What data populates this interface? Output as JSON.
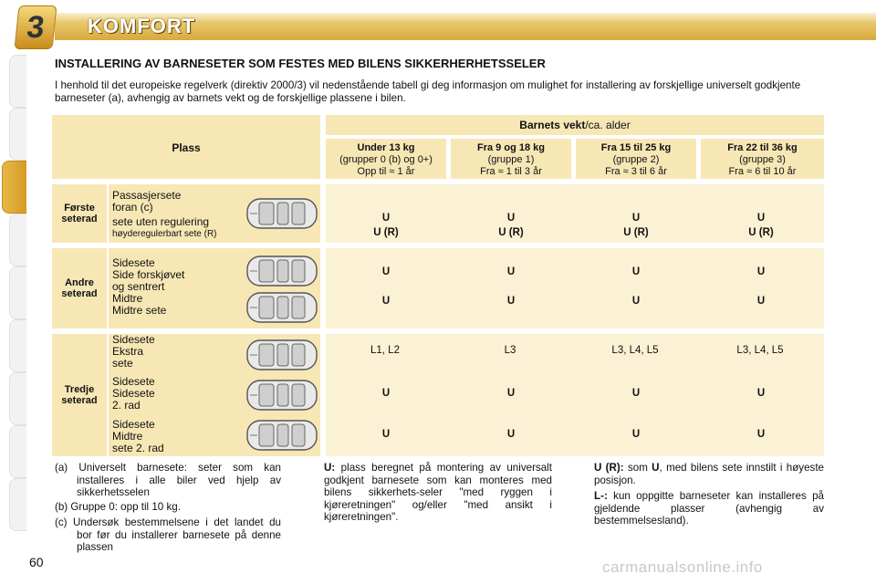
{
  "header": {
    "chapter_number": "3",
    "chapter_title": "KOMFORT"
  },
  "section_title": "INSTALLERING AV BARNESETER SOM FESTES MED BILENS SIKKERHERHETSSELER",
  "intro": "I henhold til det europeiske regelverk (direktiv 2000/3) vil nedenstående tabell gi deg informasjon om mulighet for installering av forskjellige universelt godkjente barneseter (a), avhengig av barnets vekt og de forskjellige plassene i bilen.",
  "table": {
    "plass_label": "Plass",
    "weight_header_bold": "Barnets vekt",
    "weight_header_rest": "/ca. alder",
    "groups": [
      {
        "title": "Under 13 kg",
        "sub": "(grupper 0 (b) og 0+)",
        "age": "Opp til ≈ 1 år"
      },
      {
        "title": "Fra 9 og 18 kg",
        "sub": "(gruppe 1)",
        "age": "Fra ≈ 1 til 3 år"
      },
      {
        "title": "Fra 15 til 25 kg",
        "sub": "(gruppe 2)",
        "age": "Fra ≈ 3 til 6 år"
      },
      {
        "title": "Fra 22 til 36 kg",
        "sub": "(gruppe 3)",
        "age": "Fra ≈ 6 til 10 år"
      }
    ],
    "rows": {
      "row1": {
        "label_line1": "Første",
        "label_line2": "seterad",
        "desc1": "Passasjersete",
        "desc2": "foran (c)",
        "desc3": "sete uten regulering",
        "desc4": "høyderegulerbart sete (R)",
        "values_top": [
          "U",
          "U",
          "U",
          "U"
        ],
        "values_bottom": [
          "U (R)",
          "U (R)",
          "U (R)",
          "U (R)"
        ]
      },
      "row2": {
        "label_line1": "Andre",
        "label_line2": "seterad",
        "desc1": "Sidesete",
        "desc2": "Side forskjøvet",
        "desc3": "og sentrert",
        "desc4": "Midtre",
        "desc5": "Midtre sete",
        "values_a": [
          "U",
          "U",
          "U",
          "U"
        ],
        "values_b": [
          "U",
          "U",
          "U",
          "U"
        ]
      },
      "row3": {
        "label_line1": "Tredje",
        "label_line2": "seterad",
        "sub1": [
          "Sidesete",
          "Ekstra",
          "sete"
        ],
        "sub2": [
          "Sidesete",
          "Sidesete",
          "2. rad"
        ],
        "sub3": [
          "Sidesete",
          "Midtre",
          "sete 2. rad"
        ],
        "values_a": [
          "L1, L2",
          "L3",
          "L3, L4, L5",
          "L3, L4, L5"
        ],
        "values_b": [
          "U",
          "U",
          "U",
          "U"
        ],
        "values_c": [
          "U",
          "U",
          "U",
          "U"
        ]
      }
    }
  },
  "footnotes": {
    "a": "(a) Universelt barnesete: seter som kan installeres i alle biler ved hjelp av sikkerhetsselen",
    "b": "(b) Gruppe 0: opp til 10 kg.",
    "c": "(c) Undersøk bestemmelsene i det landet du bor før du installerer barnesete på denne plassen",
    "u_term": "U:",
    "u_text": "plass beregnet på montering av universalt godkjent barnesete som kan monteres med bilens sikkerhets-seler \"med ryggen i kjøreretningen\" og/eller \"med ansikt i kjøreretningen\".",
    "ur_term": "U (R):",
    "ur_text_pre": "som",
    "ur_text_u": "U",
    "ur_text_post": ", med bilens sete innstilt i høyeste posisjon.",
    "l_term": "L-:",
    "l_text": "kun oppgitte barneseter kan installeres på gjeldende plasser (avhengig av bestemmelsesland)."
  },
  "page_number": "60",
  "watermark": "carmanualsonline.info",
  "colors": {
    "cell": "#fbf1d4",
    "cell_dark": "#f6e7b5",
    "header_gold": "#d9a93a"
  }
}
